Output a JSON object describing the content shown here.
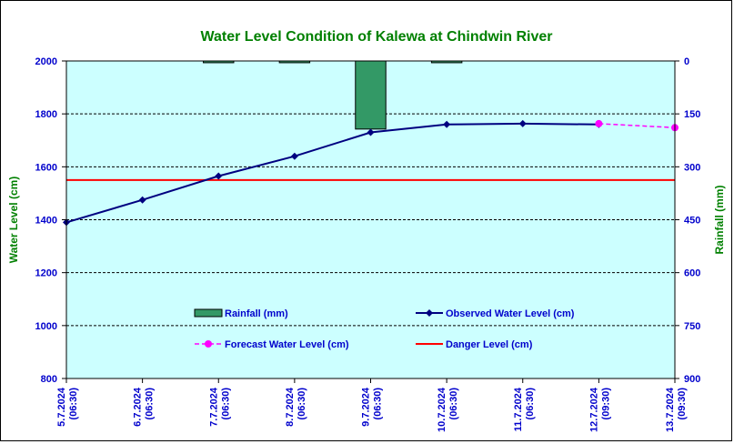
{
  "colors": {
    "background": "#ffffff",
    "plot_area": "#ccffff",
    "title": "#008000",
    "axis_text": "#0000cc",
    "observed": "#000080",
    "forecast": "#ff00ff",
    "danger": "#ff0000",
    "rainfall": "#339966"
  },
  "chart_data": {
    "type": "line",
    "title": "Water Level Condition of Kalewa at Chindwin River",
    "ylabel": "Water Level (cm)",
    "y2label": "Rainfall (mm)",
    "ylim": [
      800,
      2000
    ],
    "y2lim": [
      0,
      900
    ],
    "y2_inverted": true,
    "yticks": [
      "800",
      "1000",
      "1200",
      "1400",
      "1600",
      "1800",
      "2000"
    ],
    "y2ticks": [
      "0",
      "150",
      "300",
      "450",
      "600",
      "750",
      "900"
    ],
    "grid": "horizontal dashed",
    "categories": [
      {
        "date": "5.7.2024",
        "time": "(06:30)"
      },
      {
        "date": "6.7.2024",
        "time": "(06:30)"
      },
      {
        "date": "7.7.2024",
        "time": "(06:30)"
      },
      {
        "date": "8.7.2024",
        "time": "(06:30)"
      },
      {
        "date": "9.7.2024",
        "time": "(06:30)"
      },
      {
        "date": "10.7.2024",
        "time": "(06:30)"
      },
      {
        "date": "11.7.2024",
        "time": "(06:30)"
      },
      {
        "date": "12.7.2024",
        "time": "(09:30)"
      },
      {
        "date": "13.7.2024",
        "time": "(09:30)"
      }
    ],
    "series": [
      {
        "name": "Rainfall (mm)",
        "kind": "bar",
        "axis": "right",
        "values": [
          null,
          null,
          5,
          5,
          193,
          5,
          null,
          null,
          null
        ]
      },
      {
        "name": "Observed Water Level (cm)",
        "kind": "line",
        "marker": "diamond",
        "values": [
          1390,
          1475,
          1565,
          1640,
          1730,
          1760,
          1763,
          1760,
          null
        ]
      },
      {
        "name": "Forecast Water Level (cm)",
        "kind": "dashed-line",
        "marker": "circle",
        "values": [
          null,
          null,
          null,
          null,
          null,
          null,
          null,
          1763,
          1748
        ]
      },
      {
        "name": "Danger Level (cm)",
        "kind": "constant-line",
        "value": 1550
      }
    ],
    "legend": {
      "placement": "inside-lower",
      "items": [
        "Rainfall (mm)",
        "Observed Water Level (cm)",
        "Forecast Water Level (cm)",
        "Danger Level (cm)"
      ]
    }
  }
}
